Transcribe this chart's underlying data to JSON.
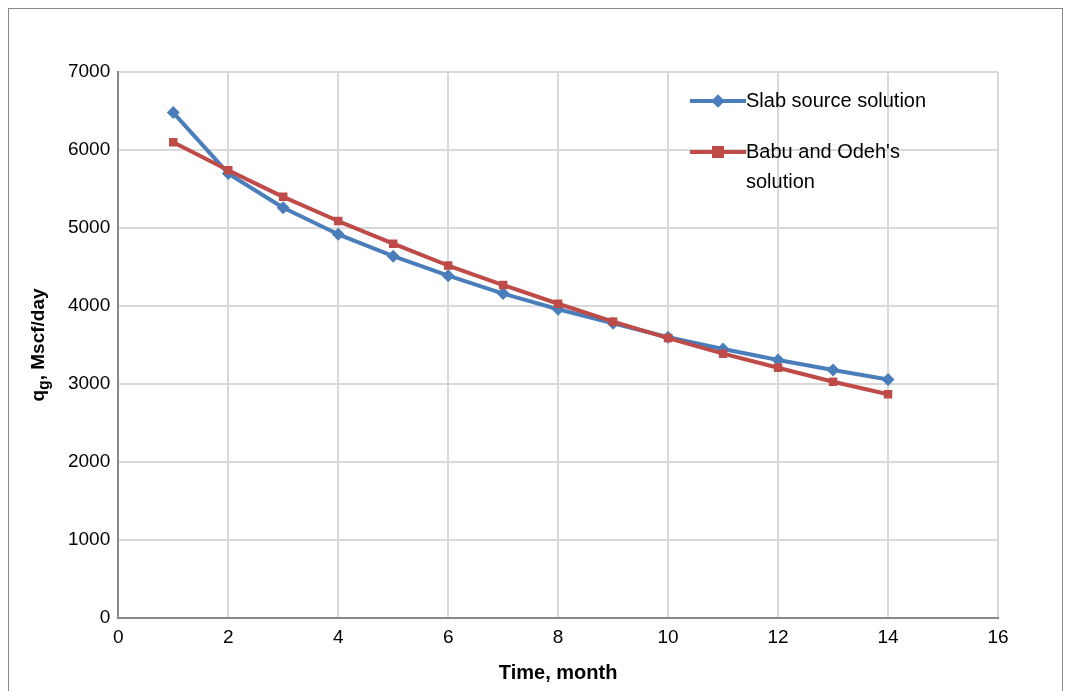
{
  "chart_data": {
    "type": "line",
    "xlabel": "Time, month",
    "ylabel": "q$_{g}$, Mscf/day",
    "x": [
      1,
      2,
      3,
      4,
      5,
      6,
      7,
      8,
      9,
      10,
      11,
      12,
      13,
      14
    ],
    "series": [
      {
        "name": "Slab source solution",
        "color": "#4a7ebb",
        "marker": "diamond",
        "values": [
          6480,
          5700,
          5260,
          4920,
          4640,
          4390,
          4160,
          3960,
          3780,
          3600,
          3450,
          3310,
          3180,
          3060
        ]
      },
      {
        "name": "Babu and Odeh's solution",
        "color": "#be4b48",
        "marker": "square",
        "values": [
          6100,
          5740,
          5400,
          5090,
          4800,
          4520,
          4270,
          4030,
          3800,
          3590,
          3390,
          3210,
          3030,
          2870
        ]
      }
    ],
    "xlim": [
      0,
      16
    ],
    "xticks": [
      0,
      2,
      4,
      6,
      8,
      10,
      12,
      14,
      16
    ],
    "ylim": [
      0,
      7000
    ],
    "yticks": [
      0,
      1000,
      2000,
      3000,
      4000,
      5000,
      6000,
      7000
    ],
    "grid": true,
    "legend": "top right"
  }
}
